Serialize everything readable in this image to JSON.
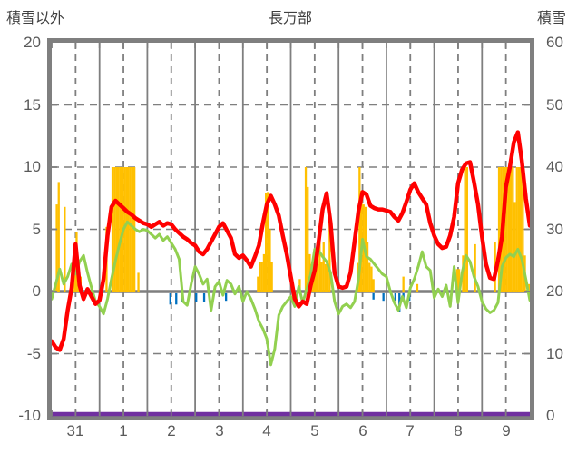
{
  "header": {
    "left_axis_title": "積雪以外",
    "chart_title": "長万部",
    "right_axis_title": "積雪"
  },
  "colors": {
    "red_line": "#FF0000",
    "green_line": "#92D050",
    "orange_bars": "#FFC000",
    "blue_bars": "#0070C0",
    "purple_snow_line": "#7030A0",
    "grid": "#7F7F7F",
    "frame": "#7F7F7F",
    "tick_text": "#595959",
    "title_text": "#404040"
  },
  "chart_data": {
    "type": "line+bar",
    "title": "長万部",
    "x_axis": {
      "day_labels": [
        "31",
        "1",
        "2",
        "3",
        "4",
        "5",
        "6",
        "7",
        "8",
        "9"
      ],
      "total_hours": 240,
      "grid": "solid lines at midnight, dashed lines at noon"
    },
    "y_left": {
      "title": "積雪以外",
      "min": -10,
      "max": 20,
      "ticks": [
        20,
        15,
        10,
        5,
        0,
        -5,
        -10
      ],
      "gridlines": [
        15,
        10,
        5,
        0,
        -5
      ]
    },
    "y_right": {
      "title": "積雪",
      "min": 0,
      "max": 60,
      "ticks": [
        60,
        50,
        40,
        30,
        20,
        10,
        0
      ]
    },
    "series": [
      {
        "name": "red_line",
        "type": "line",
        "axis": "left",
        "color": "#FF0000",
        "width": 4.5,
        "step_hours": 2,
        "values": [
          -4.0,
          -4.5,
          -4.7,
          -3.8,
          -1.5,
          0.3,
          3.8,
          0.5,
          -0.6,
          0.2,
          -0.4,
          -1.0,
          -0.7,
          1.0,
          4.5,
          6.8,
          7.3,
          7.0,
          6.7,
          6.4,
          6.2,
          5.9,
          5.7,
          5.5,
          5.4,
          5.2,
          5.4,
          5.6,
          5.3,
          5.5,
          5.4,
          5.0,
          4.7,
          4.4,
          4.2,
          3.9,
          3.7,
          3.2,
          3.0,
          3.4,
          4.0,
          4.6,
          5.2,
          5.5,
          4.9,
          4.3,
          3.0,
          2.7,
          2.9,
          2.5,
          2.0,
          2.8,
          3.7,
          5.5,
          7.0,
          7.7,
          7.0,
          6.1,
          4.5,
          3.0,
          1.2,
          -0.6,
          -1.2,
          -0.8,
          -1.0,
          0.5,
          1.7,
          4.0,
          6.6,
          7.9,
          5.5,
          1.5,
          0.4,
          0.3,
          0.4,
          1.5,
          4.0,
          6.5,
          8.0,
          7.8,
          6.9,
          6.7,
          6.6,
          6.6,
          6.5,
          6.4,
          6.0,
          5.7,
          6.3,
          7.2,
          8.2,
          8.7,
          8.0,
          7.5,
          7.0,
          5.5,
          4.5,
          3.8,
          3.5,
          3.6,
          4.5,
          6.0,
          8.7,
          9.8,
          10.3,
          10.4,
          8.8,
          7.0,
          4.4,
          2.2,
          1.1,
          1.0,
          2.5,
          4.4,
          8.4,
          10.0,
          12.0,
          12.8,
          10.5,
          7.5,
          5.3
        ]
      },
      {
        "name": "green_line",
        "type": "line",
        "axis": "left",
        "color": "#92D050",
        "width": 3,
        "step_hours": 2,
        "values": [
          -0.6,
          0.6,
          1.8,
          0.6,
          1.2,
          2.2,
          1.4,
          2.4,
          2.9,
          1.5,
          0.3,
          -0.8,
          -1.2,
          -1.8,
          -0.6,
          1.0,
          2.5,
          3.8,
          5.0,
          5.6,
          5.3,
          5.0,
          4.8,
          5.0,
          4.9,
          4.6,
          4.3,
          4.6,
          4.1,
          4.4,
          3.9,
          3.4,
          2.6,
          -0.8,
          -1.1,
          0.6,
          2.0,
          1.4,
          0.6,
          1.0,
          -1.5,
          0.4,
          0.8,
          -0.3,
          0.9,
          0.6,
          -0.2,
          0.4,
          -0.8,
          0.0,
          -0.6,
          -1.4,
          -2.4,
          -3.0,
          -3.8,
          -5.9,
          -4.6,
          -1.9,
          -1.2,
          -0.8,
          -0.4,
          -1.2,
          0.4,
          -0.9,
          0.2,
          1.4,
          3.4,
          3.3,
          2.8,
          2.4,
          1.5,
          -0.8,
          -1.8,
          -1.2,
          -1.0,
          -1.3,
          -0.8,
          1.0,
          4.2,
          2.8,
          2.6,
          2.2,
          1.8,
          1.4,
          1.2,
          0.0,
          -0.9,
          -1.5,
          -0.4,
          -1.3,
          0.3,
          1.0,
          2.0,
          3.2,
          2.0,
          1.7,
          -0.5,
          0.2,
          -0.4,
          0.5,
          -1.2,
          2.0,
          -0.9,
          1.5,
          2.9,
          2.4,
          1.2,
          0.4,
          -0.8,
          -1.4,
          -1.7,
          -1.5,
          -0.9,
          2.0,
          2.7,
          3.0,
          2.8,
          3.4,
          2.6,
          1.0,
          -0.7
        ]
      },
      {
        "name": "orange_bars",
        "type": "bar_up",
        "axis": "left",
        "color": "#FFC000",
        "pairs": [
          [
            2,
            7.0
          ],
          [
            3,
            8.8
          ],
          [
            6,
            6.8
          ],
          [
            10,
            1.5
          ],
          [
            11,
            2.2
          ],
          [
            12,
            4.8
          ],
          [
            13,
            2.5
          ],
          [
            14,
            1.2
          ],
          [
            27,
            5.2
          ],
          [
            30,
            10
          ],
          [
            31,
            10
          ],
          [
            32,
            10
          ],
          [
            33,
            10
          ],
          [
            34,
            10
          ],
          [
            35,
            10
          ],
          [
            36,
            10
          ],
          [
            37,
            10
          ],
          [
            38,
            10
          ],
          [
            39,
            10
          ],
          [
            40,
            10
          ],
          [
            41,
            10
          ],
          [
            43,
            1.5
          ],
          [
            103,
            1.2
          ],
          [
            104,
            2.4
          ],
          [
            105,
            2.4
          ],
          [
            106,
            3.0
          ],
          [
            107,
            7.9
          ],
          [
            108,
            8.0
          ],
          [
            109,
            5.0
          ],
          [
            110,
            2.4
          ],
          [
            124,
            1.0
          ],
          [
            127,
            10
          ],
          [
            128,
            8.4
          ],
          [
            129,
            3.0
          ],
          [
            130,
            2.2
          ],
          [
            131,
            2.2
          ],
          [
            132,
            3.4
          ],
          [
            133,
            2.2
          ],
          [
            134,
            4.9
          ],
          [
            135,
            2.4
          ],
          [
            136,
            4.0
          ],
          [
            137,
            2.2
          ],
          [
            138,
            2.2
          ],
          [
            139,
            6.4
          ],
          [
            153,
            2.3
          ],
          [
            154,
            10
          ],
          [
            155,
            7.9
          ],
          [
            156,
            7.0
          ],
          [
            157,
            6.8
          ],
          [
            158,
            4.0
          ],
          [
            159,
            2.3
          ],
          [
            160,
            2.0
          ],
          [
            161,
            1.0
          ],
          [
            176,
            1.2
          ],
          [
            183,
            0.6
          ],
          [
            203,
            1.8
          ],
          [
            204,
            1.8
          ],
          [
            206,
            2.9
          ],
          [
            207,
            10
          ],
          [
            208,
            10
          ],
          [
            212,
            3.8
          ],
          [
            222,
            4.0
          ],
          [
            224,
            10
          ],
          [
            225,
            10
          ],
          [
            226,
            10
          ],
          [
            227,
            10
          ],
          [
            228,
            10
          ],
          [
            229,
            10
          ],
          [
            230,
            10
          ],
          [
            231,
            10
          ],
          [
            232,
            7.2
          ],
          [
            233,
            10
          ],
          [
            234,
            10
          ],
          [
            235,
            10
          ],
          [
            236,
            10
          ],
          [
            237,
            2.9
          ],
          [
            239,
            0.6
          ]
        ]
      },
      {
        "name": "blue_bars",
        "type": "bar_down",
        "axis": "left",
        "color": "#0070C0",
        "pairs": [
          [
            59,
            0.9
          ],
          [
            62,
            0.9
          ],
          [
            65,
            0.7
          ],
          [
            72,
            0.7
          ],
          [
            76,
            0.7
          ],
          [
            87,
            0.6
          ],
          [
            161,
            0.5
          ],
          [
            166,
            0.6
          ],
          [
            172,
            0.6
          ],
          [
            174,
            1.5
          ],
          [
            176,
            0.6
          ],
          [
            179,
            0.6
          ]
        ]
      },
      {
        "name": "purple_snow_line",
        "type": "line",
        "axis": "right",
        "color": "#7030A0",
        "width": 4.5,
        "constant_value": 0
      }
    ]
  }
}
